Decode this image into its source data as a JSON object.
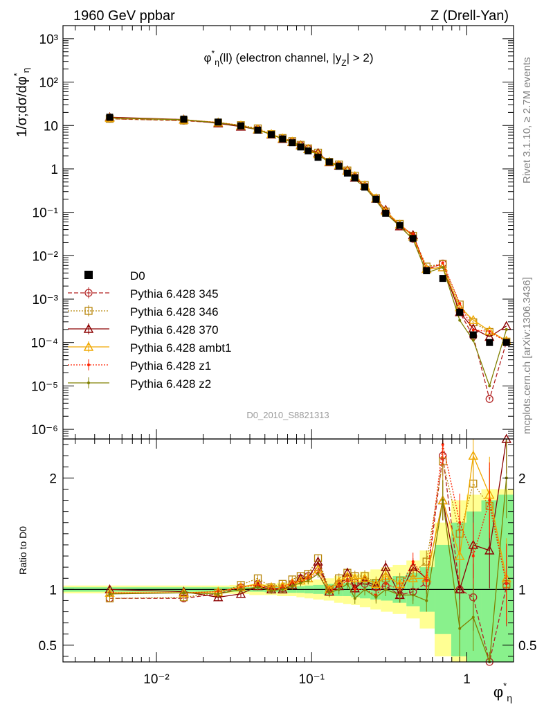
{
  "header": {
    "left": "1960 GeV ppbar",
    "right": "Z (Drell-Yan)"
  },
  "side": {
    "rivet": "Rivet 3.1.10, ≥ 2.7M events",
    "mcplots": "mcplots.cern.ch [arXiv:1306.3436]"
  },
  "chart_data": {
    "type": "line",
    "title": "φ*η(ll) (electron channel, |yZ| > 2)",
    "analysis_id": "D0_2010_S8821313",
    "xlabel": "φ*η",
    "ylabel": "1/σ;dσ/dφ*η",
    "ratio_ylabel": "Ratio to D0",
    "x_scale": "log",
    "y_scale": "log",
    "xlim": [
      0.0025,
      2.0
    ],
    "ylim": [
      6e-07,
      2000
    ],
    "ratio_ylim": [
      0.35,
      2.35
    ],
    "x_ticks": [
      "10⁻²",
      "10⁻¹",
      "1"
    ],
    "y_ticks": [
      "10³",
      "10²",
      "10",
      "1",
      "10⁻¹",
      "10⁻²",
      "10⁻³",
      "10⁻⁴",
      "10⁻⁵",
      "10⁻⁶"
    ],
    "ratio_ticks": [
      "2",
      "1",
      "0.5"
    ],
    "legend_position": "left, lower half of main panel",
    "x": [
      0.005,
      0.015,
      0.025,
      0.035,
      0.045,
      0.055,
      0.065,
      0.075,
      0.085,
      0.095,
      0.11,
      0.13,
      0.15,
      0.17,
      0.19,
      0.22,
      0.26,
      0.3,
      0.37,
      0.45,
      0.55,
      0.7,
      0.9,
      1.1,
      1.4,
      1.8
    ],
    "data": {
      "name": "D0",
      "values": [
        15.5,
        14.0,
        12.0,
        9.8,
        7.8,
        6.2,
        4.9,
        4.0,
        3.2,
        2.6,
        1.85,
        1.45,
        1.15,
        0.8,
        0.62,
        0.38,
        0.2,
        0.095,
        0.05,
        0.025,
        0.0045,
        0.003,
        0.0005,
        0.00015,
        0.0001,
        0.0001
      ]
    },
    "data_band_outer": [
      0.035,
      0.035,
      0.035,
      0.04,
      0.05,
      0.05,
      0.06,
      0.06,
      0.07,
      0.08,
      0.09,
      0.1,
      0.12,
      0.13,
      0.14,
      0.16,
      0.18,
      0.2,
      0.22,
      0.26,
      0.35,
      0.6,
      0.8,
      0.85,
      0.9,
      0.9
    ],
    "data_band_inner": [
      0.02,
      0.02,
      0.02,
      0.02,
      0.02,
      0.025,
      0.025,
      0.03,
      0.03,
      0.035,
      0.04,
      0.05,
      0.06,
      0.06,
      0.07,
      0.08,
      0.09,
      0.1,
      0.12,
      0.15,
      0.2,
      0.4,
      0.6,
      0.7,
      0.8,
      0.85
    ],
    "series": [
      {
        "name": "Pythia 6.428 345",
        "color": "#b22222",
        "marker": "circle",
        "dash": "6,3",
        "ratio": [
          0.92,
          0.92,
          0.96,
          1.02,
          1.05,
          1.01,
          1.01,
          1.05,
          1.1,
          1.12,
          1.2,
          1.0,
          1.05,
          1.1,
          1.06,
          1.05,
          1.02,
          1.03,
          0.95,
          0.98,
          1.06,
          2.2,
          1.0,
          0.93,
          0.05,
          1.03
        ]
      },
      {
        "name": "Pythia 6.428 346",
        "color": "#b8860b",
        "marker": "square",
        "dash": "2,2",
        "ratio": [
          0.92,
          0.93,
          0.97,
          1.04,
          1.1,
          1.02,
          1.05,
          1.09,
          1.12,
          1.14,
          1.28,
          1.0,
          1.1,
          1.15,
          1.12,
          1.12,
          1.06,
          1.1,
          1.08,
          1.15,
          1.25,
          2.15,
          1.5,
          1.95,
          1.75,
          1.05
        ]
      },
      {
        "name": "Pythia 6.428 370",
        "color": "#8b0000",
        "marker": "triangle-open",
        "dash": "",
        "ratio": [
          1.0,
          0.98,
          0.93,
          0.96,
          1.03,
          1.0,
          1.0,
          1.04,
          1.1,
          1.1,
          1.25,
          0.98,
          1.03,
          1.15,
          1.01,
          1.08,
          1.03,
          1.2,
          0.95,
          1.2,
          1.1,
          1.8,
          1.0,
          1.4,
          1.35,
          2.4
        ]
      },
      {
        "name": "Pythia 6.428 ambt1",
        "color": "#f0a800",
        "marker": "triangle-open",
        "dash": "",
        "ratio": [
          0.97,
          0.97,
          0.98,
          1.02,
          1.05,
          1.02,
          1.03,
          1.06,
          1.08,
          1.1,
          1.18,
          1.0,
          1.07,
          1.12,
          1.1,
          1.1,
          1.05,
          1.12,
          1.05,
          1.1,
          1.1,
          1.8,
          1.3,
          2.2,
          1.85,
          1.1
        ]
      },
      {
        "name": "Pythia 6.428 z1",
        "color": "#ff2200",
        "marker": "dot",
        "dash": "2,2",
        "ratio": [
          0.97,
          0.97,
          0.98,
          1.02,
          1.04,
          1.0,
          1.02,
          1.06,
          1.07,
          1.1,
          1.15,
          0.98,
          1.03,
          1.08,
          1.0,
          1.0,
          0.95,
          1.05,
          1.0,
          1.25,
          1.08,
          2.3,
          1.6,
          1.3,
          1.8,
          1.05
        ]
      },
      {
        "name": "Pythia 6.428 z2",
        "color": "#808000",
        "marker": "dot",
        "dash": "",
        "ratio": [
          0.96,
          0.97,
          0.96,
          1.0,
          1.02,
          0.99,
          1.0,
          1.03,
          1.06,
          1.08,
          1.14,
          0.97,
          1.0,
          1.05,
          0.92,
          1.0,
          0.93,
          1.0,
          0.95,
          0.95,
          0.9,
          1.8,
          0.65,
          0.75,
          0.1,
          2.0
        ]
      }
    ]
  }
}
